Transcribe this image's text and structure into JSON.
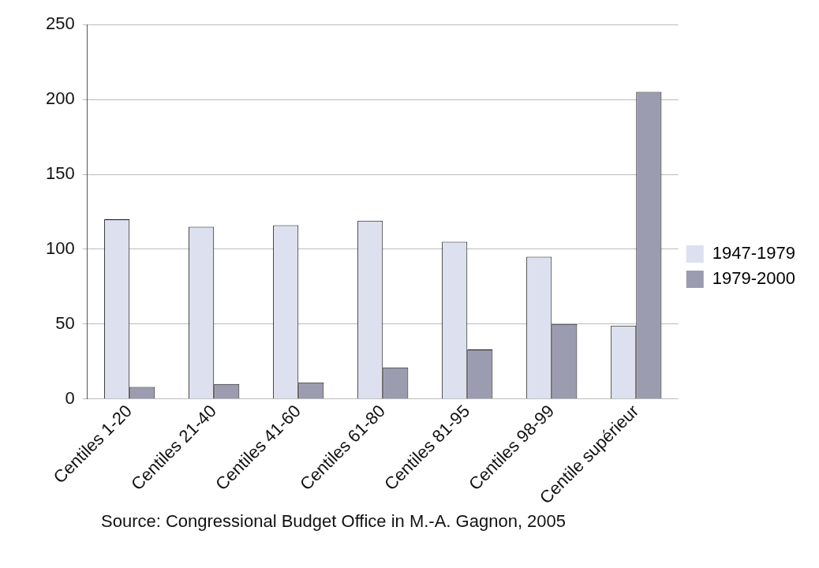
{
  "chart_data": {
    "type": "bar",
    "categories": [
      "Centiles 1-20",
      "Centiles 21-40",
      "Centiles 41-60",
      "Centiles 61-80",
      "Centiles 81-95",
      "Centiles 98-99",
      "Centile supérieur"
    ],
    "series": [
      {
        "name": "1947-1979",
        "color": "#dde1ef",
        "values": [
          120,
          115,
          116,
          119,
          105,
          95,
          49
        ]
      },
      {
        "name": "1979-2000",
        "color": "#9c9cb0",
        "values": [
          8,
          10,
          11,
          21,
          33,
          50,
          205
        ]
      }
    ],
    "ylim": [
      0,
      250
    ],
    "yticks": [
      0,
      50,
      100,
      150,
      200,
      250
    ],
    "grid": "y",
    "legend": "right",
    "annotations": [
      "Source: Congressional Budget Office in M.-A. Gagnon, 2005"
    ]
  }
}
